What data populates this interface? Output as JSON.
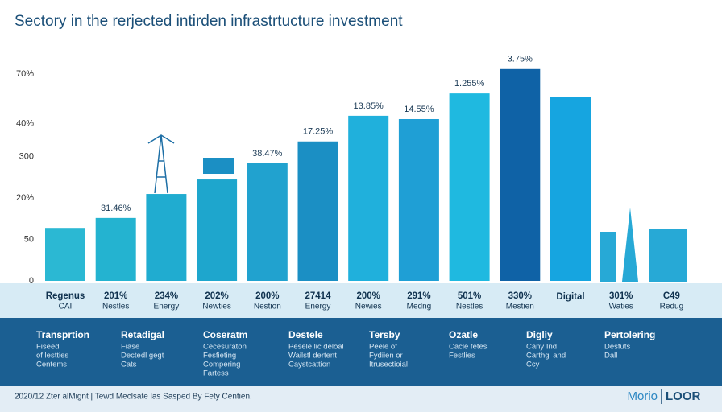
{
  "chart_data": {
    "type": "bar",
    "title": "Sectory in the rerjected intirden infrastrtucture investment",
    "categories": [
      [
        "Regenus",
        "CAI"
      ],
      [
        "201%",
        "Nestles"
      ],
      [
        "234%",
        "Energy"
      ],
      [
        "202%",
        "Newties"
      ],
      [
        "200%",
        "Nestion"
      ],
      [
        "27414",
        "Energy"
      ],
      [
        "200%",
        "Newies"
      ],
      [
        "291%",
        "Medng"
      ],
      [
        "501%",
        "Nestles"
      ],
      [
        "330%",
        "Mestien"
      ],
      [
        "Digital"
      ],
      [
        "301%",
        "Waties"
      ],
      [
        "C49",
        "Redug"
      ]
    ],
    "values": [
      1.28,
      1.52,
      2.1,
      2.45,
      2.84,
      3.37,
      3.99,
      3.91,
      4.53,
      5.12,
      4.44,
      null,
      null
    ],
    "bar_labels": [
      null,
      "31.46%",
      null,
      null,
      "38.47%",
      "17.25%",
      "13.85%",
      "14.55%",
      "1.255%",
      "3.75%",
      null,
      null,
      null
    ],
    "colors": [
      "#2bb8d3",
      "#24b3d0",
      "#20acd0",
      "#1ea6cd",
      "#21a2cf",
      "#1b8fc4",
      "#20b0dc",
      "#1f9fd5",
      "#1fb9e0",
      "#0f62a6",
      "#16a5e0",
      "#1b9fd6",
      "#1b9fd6"
    ],
    "ylim": [
      0,
      5.4
    ],
    "yticks": [
      0,
      {
        "value": 1,
        "label": "50"
      },
      {
        "value": 2,
        "label": "20%"
      },
      {
        "value": 3,
        "label": "300"
      },
      {
        "value": 3.8,
        "label": "40%"
      },
      {
        "value": 5,
        "label": "70%"
      }
    ],
    "grid": false
  },
  "notes": [
    {
      "title": "Transprtion",
      "lines": [
        "Fiseed",
        "of lestties",
        "Centems"
      ]
    },
    {
      "title": "Retadigal",
      "lines": [
        "Fiase",
        "Dectedl gegt",
        "Cats"
      ]
    },
    {
      "title": "Coseratm",
      "lines": [
        "Cecesuraton",
        "Fesfieting",
        "Compering",
        "Fartess"
      ]
    },
    {
      "title": "Destele",
      "lines": [
        "Pesele lic deloal",
        "Wailstl dertent",
        "Caystcattion"
      ]
    },
    {
      "title": "Tersby",
      "lines": [
        "Peele of",
        "Fydiien or",
        "Itrusectioial"
      ]
    },
    {
      "title": "Ozatle",
      "lines": [
        "Cacle fetes",
        "Festlies"
      ]
    },
    {
      "title": "Digliy",
      "lines": [
        "Cany Ind",
        "Carthgl and",
        "Ccy"
      ]
    },
    {
      "title": "Pertolering",
      "lines": [
        "Desfuts",
        "Dall"
      ]
    }
  ],
  "footer": {
    "text": "2020/12 Zter alMignt | Tewd Meclsate las Sasped By Fety Centien.",
    "brand": [
      "Morio",
      "LOOR"
    ]
  }
}
